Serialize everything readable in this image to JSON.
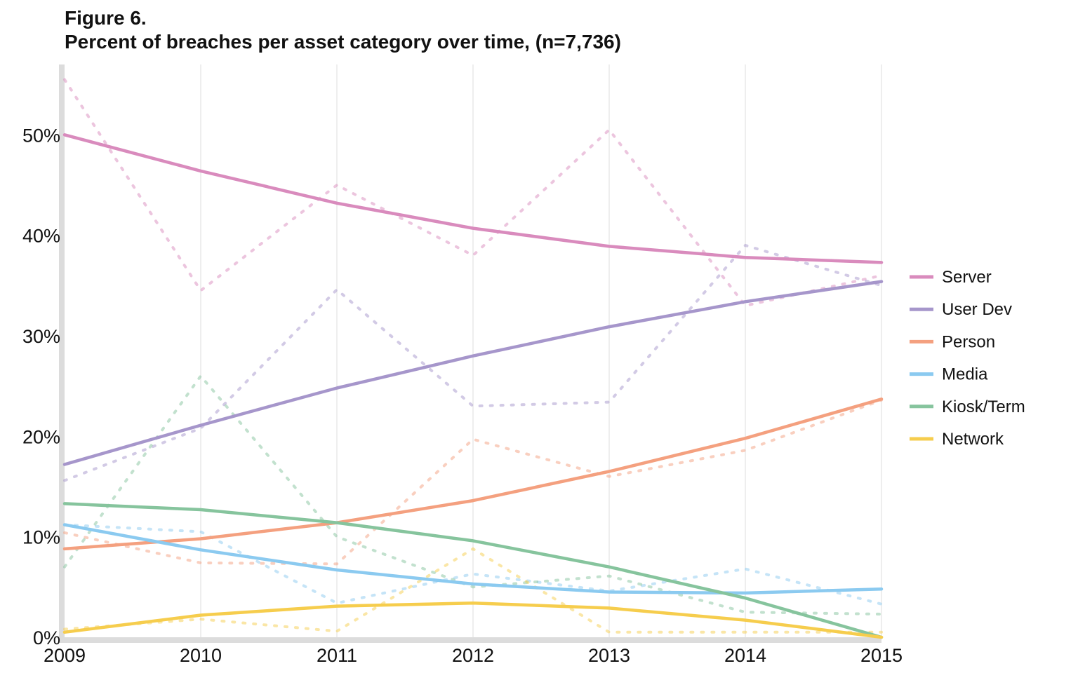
{
  "figure": {
    "label": "Figure 6.",
    "title": "Percent of breaches per asset category over time, (n=7,736)"
  },
  "chart_data": {
    "type": "line",
    "x": [
      2009,
      2010,
      2011,
      2012,
      2013,
      2014,
      2015
    ],
    "x_tick_labels": [
      "2009",
      "2010",
      "2011",
      "2012",
      "2013",
      "2014",
      "2015"
    ],
    "ylim": [
      0,
      57
    ],
    "y_ticks": [
      0,
      10,
      20,
      30,
      40,
      50
    ],
    "y_tick_labels": [
      "0%",
      "10%",
      "20%",
      "30%",
      "40%",
      "50%"
    ],
    "grid": "vertical",
    "legend_position": "right",
    "line_styles": {
      "trend": "solid",
      "observed": "dotted"
    },
    "series": [
      {
        "name": "Server",
        "color": "#d98bbd",
        "trend": [
          50.0,
          46.4,
          43.2,
          40.7,
          38.9,
          37.8,
          37.3
        ],
        "observed": [
          55.5,
          34.5,
          45.0,
          38.0,
          50.5,
          33.0,
          36.0
        ]
      },
      {
        "name": "User Dev",
        "color": "#a696cb",
        "trend": [
          17.2,
          21.1,
          24.8,
          28.0,
          30.9,
          33.4,
          35.4
        ],
        "observed": [
          15.6,
          20.8,
          34.6,
          23.0,
          23.4,
          39.0,
          35.0
        ]
      },
      {
        "name": "Person",
        "color": "#f4a07f",
        "trend": [
          8.8,
          9.8,
          11.4,
          13.6,
          16.5,
          19.8,
          23.7
        ],
        "observed": [
          10.4,
          7.4,
          7.3,
          19.7,
          16.0,
          18.6,
          23.6
        ]
      },
      {
        "name": "Media",
        "color": "#8bcaf0",
        "trend": [
          11.2,
          8.7,
          6.7,
          5.3,
          4.5,
          4.4,
          4.8
        ],
        "observed": [
          11.2,
          10.5,
          3.4,
          6.3,
          4.6,
          6.8,
          3.3
        ]
      },
      {
        "name": "Kiosk/Term",
        "color": "#86c49d",
        "trend": [
          13.3,
          12.7,
          11.4,
          9.6,
          7.0,
          3.9,
          0.0
        ],
        "observed": [
          7.0,
          26.0,
          10.0,
          5.0,
          6.1,
          2.5,
          2.3
        ]
      },
      {
        "name": "Network",
        "color": "#f6cd4d",
        "trend": [
          0.5,
          2.2,
          3.1,
          3.4,
          2.9,
          1.7,
          0.0
        ],
        "observed": [
          0.8,
          1.8,
          0.6,
          8.8,
          0.5,
          0.5,
          0.5
        ]
      }
    ]
  }
}
